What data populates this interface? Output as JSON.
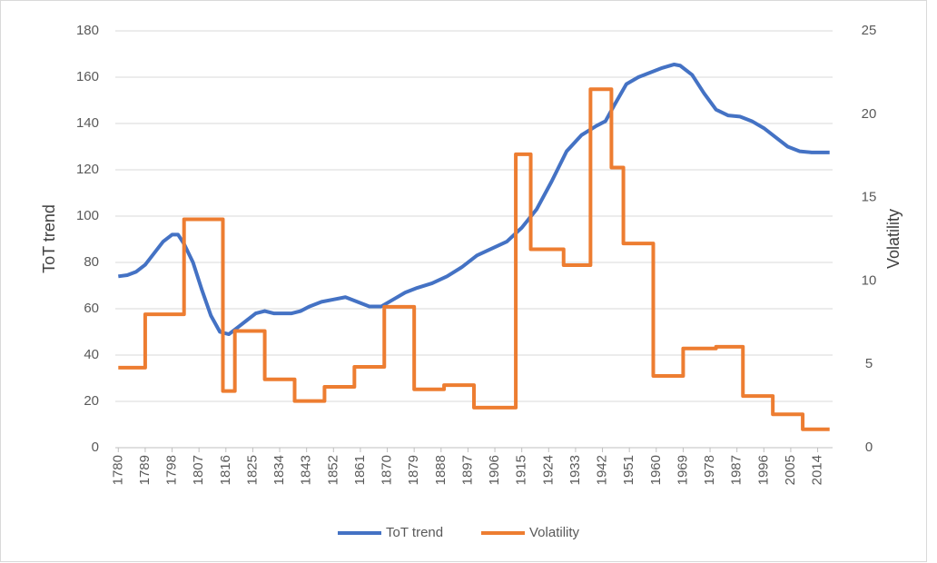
{
  "chart_data": {
    "type": "line",
    "ylabel": "ToT trend",
    "y2label": "Volatility",
    "xlim": [
      1779,
      2019
    ],
    "xticks": [
      1780,
      1789,
      1798,
      1807,
      1816,
      1825,
      1834,
      1843,
      1852,
      1861,
      1870,
      1879,
      1888,
      1897,
      1906,
      1915,
      1924,
      1933,
      1942,
      1951,
      1960,
      1969,
      1978,
      1987,
      1996,
      2005,
      2014
    ],
    "ylim": [
      0,
      180
    ],
    "yticks": [
      0,
      20,
      40,
      60,
      80,
      100,
      120,
      140,
      160,
      180
    ],
    "y2lim": [
      0,
      25
    ],
    "y2ticks": [
      0,
      5,
      10,
      15,
      20,
      25
    ],
    "grid": true,
    "legend": "bottom",
    "series": [
      {
        "name": "ToT trend",
        "color": "#4472c4",
        "x": [
          1780,
          1783,
          1786,
          1789,
          1792,
          1795,
          1798,
          1800,
          1802,
          1805,
          1808,
          1811,
          1814,
          1817,
          1820,
          1823,
          1826,
          1829,
          1832,
          1838,
          1841,
          1844,
          1848,
          1852,
          1856,
          1860,
          1864,
          1868,
          1872,
          1876,
          1880,
          1885,
          1890,
          1895,
          1900,
          1905,
          1910,
          1915,
          1920,
          1925,
          1930,
          1935,
          1940,
          1943,
          1946,
          1950,
          1954,
          1958,
          1962,
          1966,
          1968,
          1972,
          1976,
          1980,
          1984,
          1988,
          1992,
          1996,
          2000,
          2004,
          2008,
          2012,
          2018
        ],
        "values": [
          74,
          74.5,
          76,
          79,
          84,
          89,
          92,
          92,
          88,
          80,
          68,
          57,
          50,
          49,
          52,
          55,
          58,
          59,
          58,
          58,
          59,
          61,
          63,
          64,
          65,
          63,
          61,
          61,
          64,
          67,
          69,
          71,
          74,
          78,
          83,
          86,
          89,
          95,
          103,
          115,
          128,
          135,
          139,
          141,
          148,
          157,
          160,
          162,
          164,
          165.5,
          165,
          161,
          153,
          146,
          143.5,
          143,
          141,
          138,
          134,
          130,
          128,
          127.5,
          127.5
        ]
      },
      {
        "name": "Volatility",
        "color": "#ed7d31",
        "axis": "y2",
        "x": [
          1780,
          1789,
          1789,
          1802,
          1802,
          1815,
          1815,
          1819,
          1819,
          1829,
          1829,
          1839,
          1839,
          1849,
          1849,
          1859,
          1859,
          1869,
          1869,
          1879,
          1879,
          1889,
          1889,
          1899,
          1899,
          1913,
          1913,
          1918,
          1918,
          1929,
          1929,
          1938,
          1938,
          1945,
          1945,
          1949,
          1949,
          1959,
          1959,
          1969,
          1969,
          1980,
          1980,
          1989,
          1989,
          1999,
          1999,
          2009,
          2009,
          2018
        ],
        "values": [
          4.8,
          4.8,
          8,
          8,
          13.7,
          13.7,
          3.4,
          3.4,
          7,
          7,
          4.1,
          4.1,
          2.8,
          2.8,
          3.65,
          3.65,
          4.85,
          4.85,
          8.45,
          8.45,
          3.5,
          3.5,
          3.75,
          3.75,
          2.4,
          2.4,
          17.6,
          17.6,
          11.9,
          11.9,
          10.95,
          10.95,
          21.5,
          21.5,
          16.8,
          16.8,
          12.25,
          12.25,
          4.3,
          4.3,
          5.95,
          5.95,
          6.05,
          6.05,
          3.1,
          3.1,
          2.0,
          2.0,
          1.1,
          1.1
        ]
      }
    ]
  }
}
